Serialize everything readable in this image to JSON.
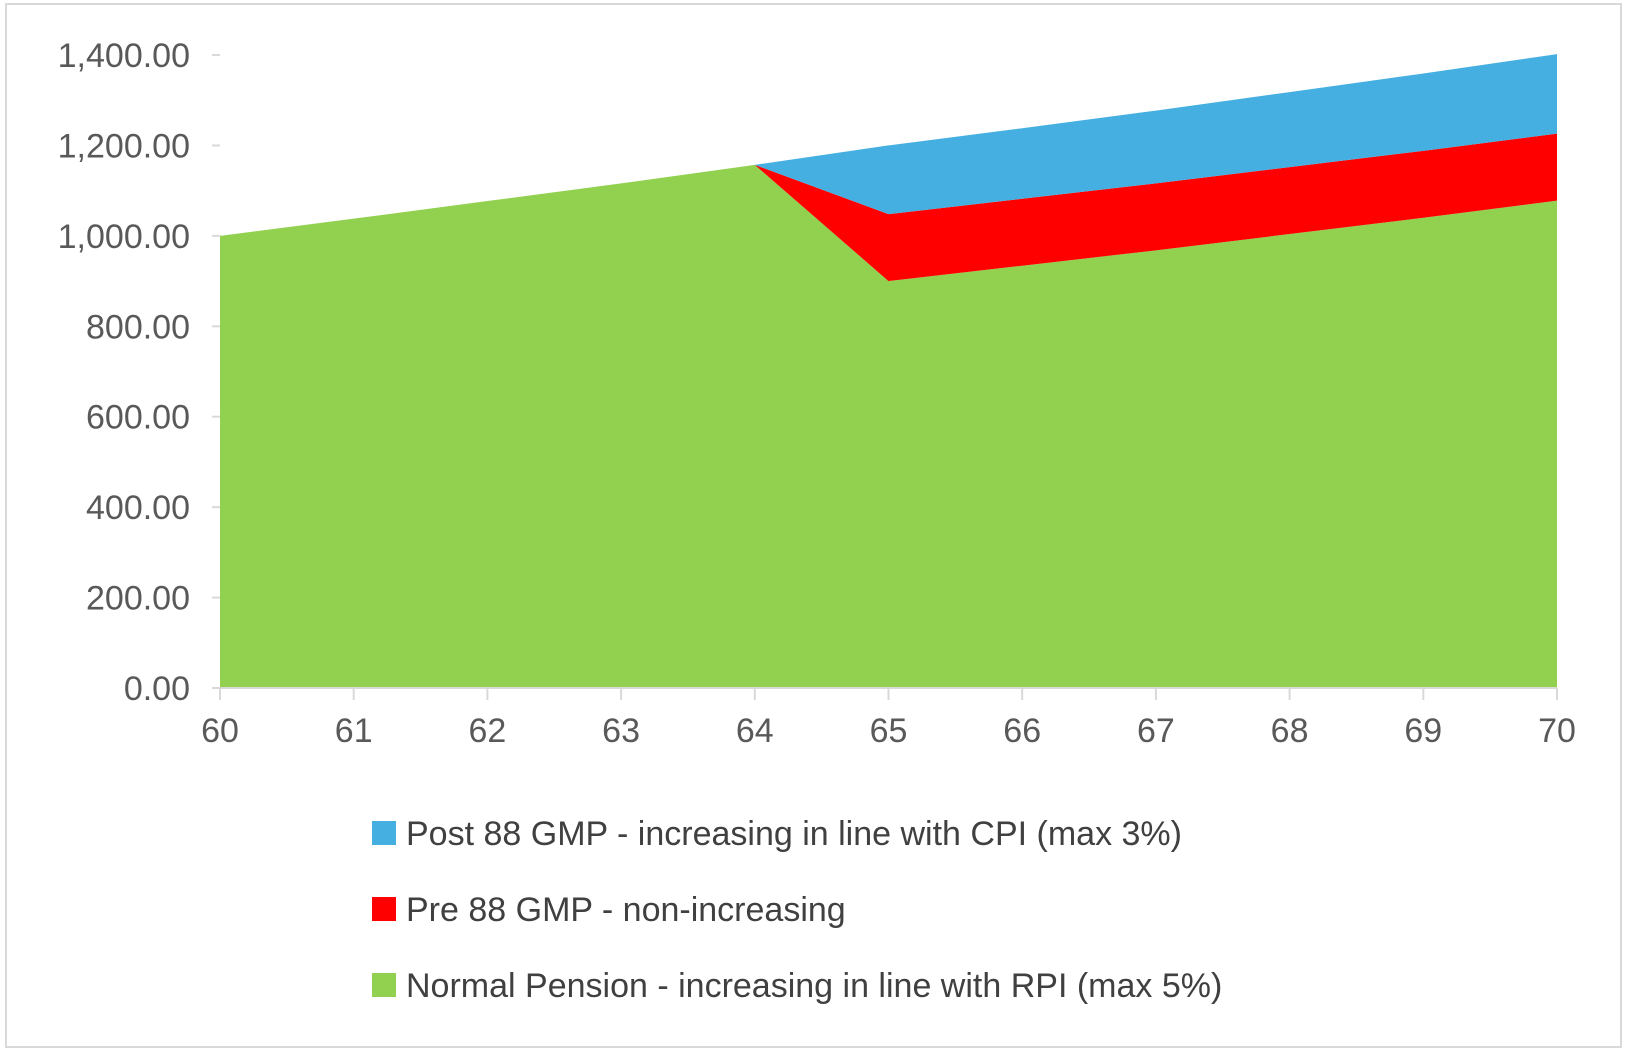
{
  "chart_data": {
    "type": "area",
    "stacked": true,
    "title": "",
    "xlabel": "",
    "ylabel": "",
    "x": [
      60,
      61,
      62,
      63,
      64,
      65,
      66,
      67,
      68,
      69,
      70
    ],
    "x_tick_labels": [
      "60",
      "61",
      "62",
      "63",
      "64",
      "65",
      "66",
      "67",
      "68",
      "69",
      "70"
    ],
    "ylim": [
      0,
      1400
    ],
    "y_ticks": [
      0,
      200,
      400,
      600,
      800,
      1000,
      1200,
      1400
    ],
    "y_tick_labels": [
      "0.00",
      "200.00",
      "400.00",
      "600.00",
      "800.00",
      "1,000.00",
      "1,200.00",
      "1,400.00"
    ],
    "grid": false,
    "legend_position": "bottom",
    "series": [
      {
        "name": "Normal Pension - increasing in line with RPI (max 5%)",
        "color": "#92D050",
        "values": [
          1000,
          1038,
          1077,
          1116,
          1157,
          900,
          934,
          968,
          1004,
          1040,
          1078
        ]
      },
      {
        "name": "Pre 88 GMP - non-increasing",
        "color": "#FF0000",
        "values": [
          0,
          0,
          0,
          0,
          0,
          148,
          148,
          148,
          148,
          148,
          148
        ]
      },
      {
        "name": "Post 88 GMP - increasing in line with CPI (max 3%)",
        "color": "#44AFE0",
        "values": [
          0,
          0,
          0,
          0,
          0,
          152,
          156,
          161,
          166,
          171,
          176
        ]
      }
    ],
    "legend_order": [
      "Post 88 GMP - increasing in line with CPI (max 3%)",
      "Pre 88 GMP - non-increasing",
      "Normal Pension - increasing in line with RPI (max 5%)"
    ]
  }
}
